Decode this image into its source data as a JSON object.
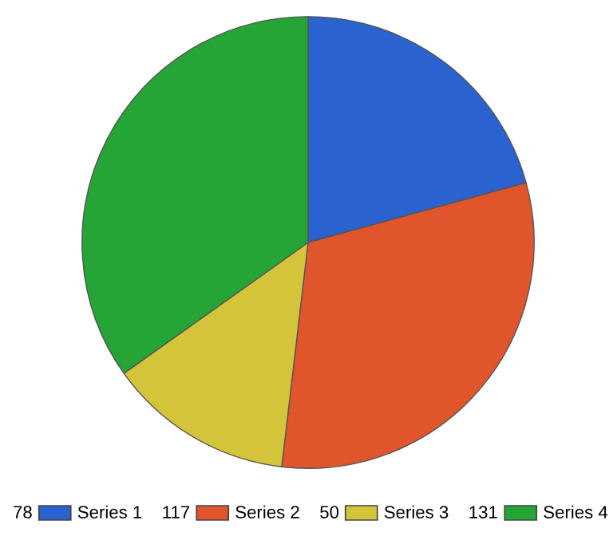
{
  "chart_data": {
    "type": "pie",
    "categories": [
      "Series 1",
      "Series 2",
      "Series 3",
      "Series 4"
    ],
    "values": [
      78,
      117,
      50,
      131
    ],
    "colors": [
      "#2a62d0",
      "#e0552c",
      "#d4c43a",
      "#25a536"
    ],
    "data_labels": true,
    "legend": "bottom"
  }
}
